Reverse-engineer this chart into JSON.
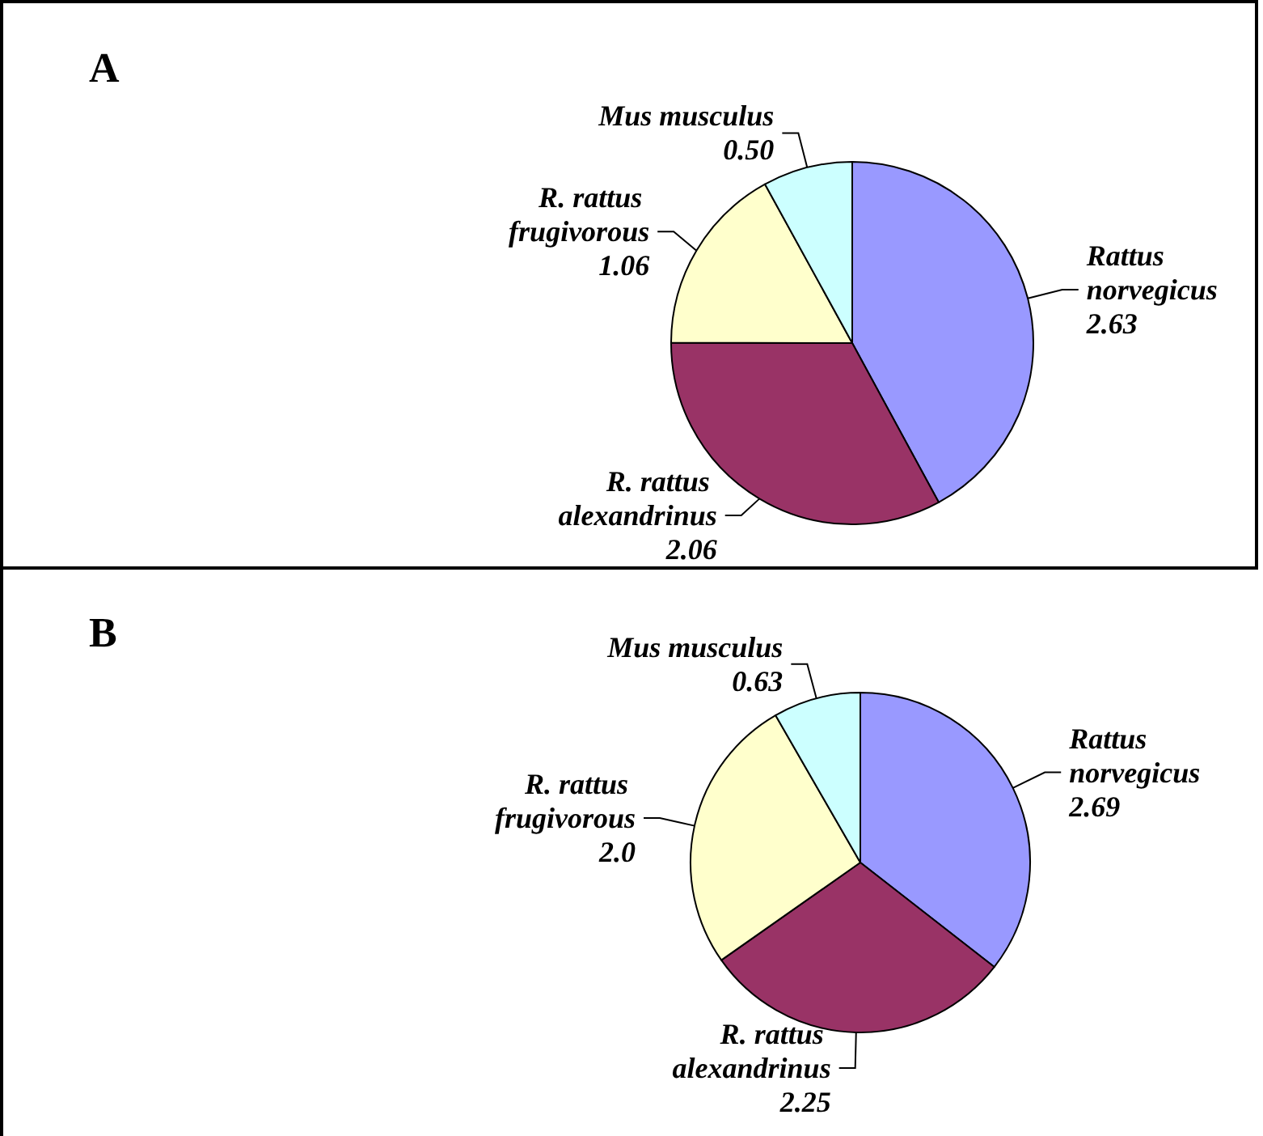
{
  "chart_data": [
    {
      "type": "pie",
      "title": "A",
      "categories": [
        "Rattus norvegicus",
        "R. rattus alexandrinus",
        "R. rattus frugivorous",
        "Mus musculus"
      ],
      "values": [
        2.63,
        2.06,
        1.06,
        0.5
      ],
      "value_labels": [
        "2.63",
        "2.06",
        "1.06",
        "0.50"
      ],
      "colors": [
        "#9999ff",
        "#993366",
        "#ffffcc",
        "#ccffff"
      ]
    },
    {
      "type": "pie",
      "title": "B",
      "categories": [
        "Rattus norvegicus",
        "R. rattus alexandrinus",
        "R. rattus frugivorous",
        "Mus musculus"
      ],
      "values": [
        2.69,
        2.25,
        2.0,
        0.63
      ],
      "value_labels": [
        "2.69",
        "2.25",
        "2.0",
        "0.63"
      ],
      "colors": [
        "#9999ff",
        "#993366",
        "#ffffcc",
        "#ccffff"
      ]
    }
  ]
}
